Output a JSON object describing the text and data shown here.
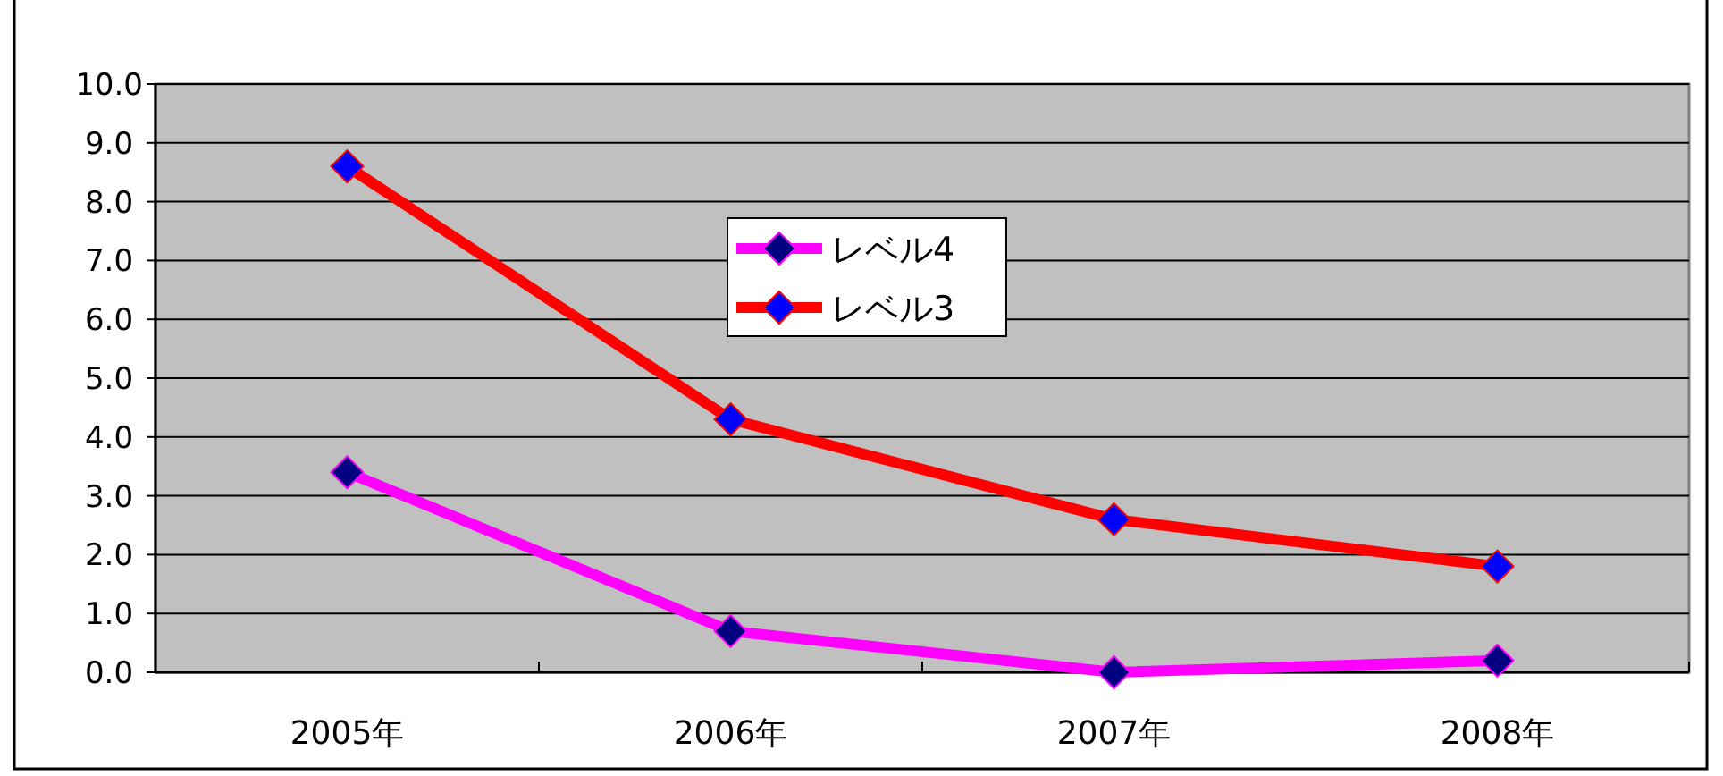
{
  "chart_data": {
    "type": "line",
    "categories": [
      "2005年",
      "2006年",
      "2007年",
      "2008年"
    ],
    "series": [
      {
        "name": "レベル4",
        "color": "#ff00ff",
        "colors": [
          "#000080",
          "#000080",
          "#000080",
          "#000080"
        ],
        "values": [
          3.4,
          0.7,
          0.0,
          0.2
        ]
      },
      {
        "name": "レベル3",
        "color": "#ff0000",
        "colors": [
          "#0000ff",
          "#0000ff",
          "#0000ff",
          "#0000ff"
        ],
        "values": [
          8.6,
          4.3,
          2.6,
          1.8
        ]
      }
    ],
    "ylim": [
      0,
      10
    ],
    "yticks": [
      {
        "value": 0,
        "label": "0.0"
      },
      {
        "value": 1,
        "label": "1.0"
      },
      {
        "value": 2,
        "label": "2.0"
      },
      {
        "value": 3,
        "label": "3.0"
      },
      {
        "value": 4,
        "label": "4.0"
      },
      {
        "value": 5,
        "label": "5.0"
      },
      {
        "value": 6,
        "label": "6.0"
      },
      {
        "value": 7,
        "label": "7.0"
      },
      {
        "value": 8,
        "label": "8.0"
      },
      {
        "value": 9,
        "label": "9.0"
      },
      {
        "value": 10,
        "label": "10.0"
      }
    ],
    "grid": "y",
    "legend": "top",
    "marker": "diamond",
    "line_style": "solid"
  }
}
